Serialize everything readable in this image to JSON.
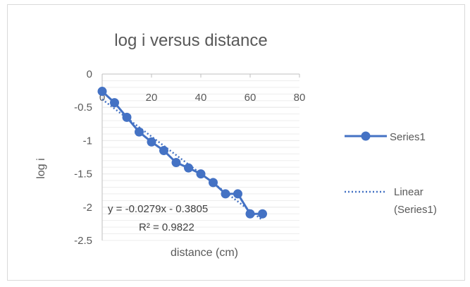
{
  "chart_data": {
    "type": "scatter",
    "title": "log i  versus distance",
    "xlabel": "distance (cm)",
    "ylabel": "log i",
    "xlim": [
      0,
      80
    ],
    "ylim": [
      -2.5,
      0
    ],
    "x_ticks": [
      0,
      20,
      40,
      60,
      80
    ],
    "y_ticks": [
      0,
      -0.5,
      -1,
      -1.5,
      -2,
      -2.5
    ],
    "x_tick_labels": [
      "0",
      "20",
      "40",
      "60",
      "80"
    ],
    "y_tick_labels": [
      "0",
      "-0.5",
      "-1",
      "-1.5",
      "-2",
      "-2.5"
    ],
    "x_axis_position": "top",
    "grid": "horizontal",
    "legend_position": "right",
    "series": [
      {
        "name": "Series1",
        "style": "line-with-markers",
        "color": "#4472c4",
        "x": [
          0,
          5,
          10,
          15,
          20,
          25,
          30,
          35,
          40,
          45,
          50,
          55,
          60,
          65
        ],
        "y": [
          -0.26,
          -0.43,
          -0.65,
          -0.87,
          -1.02,
          -1.15,
          -1.33,
          -1.41,
          -1.5,
          -1.63,
          -1.8,
          -1.8,
          -2.1,
          -2.1
        ]
      }
    ],
    "trendline": {
      "legend_line1": "Linear",
      "legend_line2": "(Series1)",
      "slope": -0.0279,
      "intercept": -0.3805,
      "equation": "y = -0.0279x - 0.3805",
      "r_squared": "R² = 0.9822",
      "color": "#4472c4"
    }
  }
}
